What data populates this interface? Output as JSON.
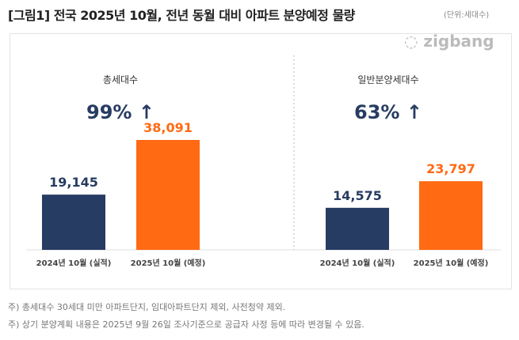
{
  "title": "[그림1] 전국 2025년 10월, 전년 동월 대비 아파트 분양예정 물량",
  "unit": "(단위:세대수)",
  "logo": "zigbang",
  "colors": {
    "prev": "#273c63",
    "curr": "#ff6a13",
    "change": "#273c63"
  },
  "chart_data": [
    {
      "type": "bar",
      "title": "총세대수",
      "change": "99% ↑",
      "categories": [
        "2024년 10월 (실적)",
        "2025년 10월 (예정)"
      ],
      "values": [
        19145,
        38091
      ],
      "labels": [
        "19,145",
        "38,091"
      ]
    },
    {
      "type": "bar",
      "title": "일반분양세대수",
      "change": "63% ↑",
      "categories": [
        "2024년 10월 (실적)",
        "2025년 10월 (예정)"
      ],
      "values": [
        14575,
        23797
      ],
      "labels": [
        "14,575",
        "23,797"
      ]
    }
  ],
  "notes": [
    "주) 총세대수 30세대 미만 아파트단지, 임대아파트단지 제외, 사전청약 제외.",
    "주) 상기 분양계획 내용은 2025년 9월 26일 조사기준으로 공급자 사정 등에 따라 변경될 수 있음."
  ]
}
